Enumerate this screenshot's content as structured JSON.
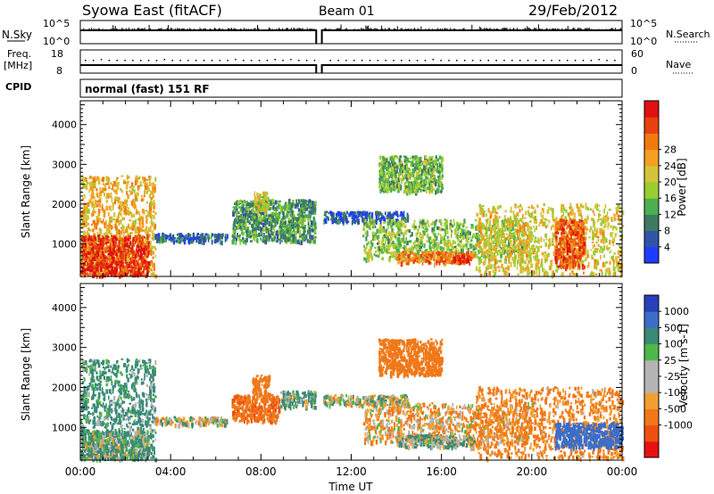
{
  "header": {
    "title": "Syowa East (fitACF)",
    "beam": "Beam 01",
    "date": "29/Feb/2012"
  },
  "aux_panels": {
    "nsky_label": "N.Sky",
    "nsky_ticks": [
      "10^5",
      "10^0"
    ],
    "nsearch_label": "N.Search",
    "nsearch_ticks": [
      "10^5",
      "10^0"
    ],
    "freq_label_line1": "Freq.",
    "freq_label_line2": "[MHz]",
    "freq_ticks": [
      "18",
      "8"
    ],
    "nave_label": "Nave",
    "nave_ticks": [
      "60",
      "0"
    ],
    "cpid_label": "CPID",
    "cpid_text": "normal (fast) 151 RF"
  },
  "x_axis": {
    "label": "Time UT",
    "ticks": [
      "00:00",
      "04:00",
      "08:00",
      "12:00",
      "16:00",
      "20:00",
      "00:00"
    ]
  },
  "colorbars": {
    "power": {
      "label": "Power [dB]",
      "ticks": [
        "4",
        "8",
        "12",
        "16",
        "20",
        "24",
        "28"
      ],
      "colors": [
        "#1e3cff",
        "#2f54a8",
        "#3e7a60",
        "#4caf50",
        "#9acd32",
        "#d4c43a",
        "#f4a020",
        "#f07a10",
        "#e84010",
        "#e01010"
      ]
    },
    "velocity": {
      "label": "Velocity [m s-1]",
      "ticks": [
        "1000",
        "500",
        "100",
        "25",
        "-25",
        "-100",
        "-500",
        "-1000"
      ],
      "colors": [
        "#2840b8",
        "#3c6ec8",
        "#3a8a78",
        "#4cb848",
        "#b4b4b4",
        "#b4b4b4",
        "#f0a030",
        "#f07818",
        "#ee5010",
        "#e81010"
      ]
    }
  },
  "chart_data": [
    {
      "type": "heatmap",
      "name": "power",
      "ylabel": "Slant Range [km]",
      "xlabel": "",
      "ylim": [
        180,
        4600
      ],
      "xlim": [
        0,
        24
      ],
      "y_ticks": [
        "1000",
        "2000",
        "3000",
        "4000"
      ],
      "x_ticks": [
        "00:00",
        "04:00",
        "08:00",
        "12:00",
        "16:00",
        "20:00",
        "00:00"
      ],
      "scale_range": [
        0,
        32
      ],
      "scale_unit": "dB",
      "data_gap_hours": [
        10.45,
        10.7
      ],
      "echo_regions": [
        {
          "t": [
            0.0,
            3.3
          ],
          "r": [
            200,
            2700
          ],
          "value": 20
        },
        {
          "t": [
            0.0,
            3.0
          ],
          "r": [
            200,
            1200
          ],
          "value": 28
        },
        {
          "t": [
            3.3,
            6.5
          ],
          "r": [
            1050,
            1250
          ],
          "value": 6
        },
        {
          "t": [
            6.7,
            10.4
          ],
          "r": [
            1050,
            2100
          ],
          "value": 10
        },
        {
          "t": [
            7.6,
            8.3
          ],
          "r": [
            1800,
            2300
          ],
          "value": 16
        },
        {
          "t": [
            10.7,
            14.5
          ],
          "r": [
            1550,
            1800
          ],
          "value": 5
        },
        {
          "t": [
            12.5,
            20.0
          ],
          "r": [
            600,
            1600
          ],
          "value": 14
        },
        {
          "t": [
            14.0,
            17.4
          ],
          "r": [
            500,
            800
          ],
          "value": 24
        },
        {
          "t": [
            16.5,
            17.2
          ],
          "r": [
            550,
            700
          ],
          "value": 30
        },
        {
          "t": [
            13.2,
            16.0
          ],
          "r": [
            2300,
            3200
          ],
          "value": 12
        },
        {
          "t": [
            17.5,
            24.0
          ],
          "r": [
            200,
            2000
          ],
          "value": 18
        },
        {
          "t": [
            21.0,
            22.3
          ],
          "r": [
            400,
            1600
          ],
          "value": 26
        }
      ]
    },
    {
      "type": "heatmap",
      "name": "velocity",
      "ylabel": "Slant Range [km]",
      "xlabel": "Time UT",
      "ylim": [
        180,
        4600
      ],
      "xlim": [
        0,
        24
      ],
      "y_ticks": [
        "1000",
        "2000",
        "3000",
        "4000"
      ],
      "x_ticks": [
        "00:00",
        "04:00",
        "08:00",
        "12:00",
        "16:00",
        "20:00",
        "00:00"
      ],
      "scale_range": [
        -1000,
        1000
      ],
      "scale_unit": "m s-1",
      "data_gap_hours": [
        10.45,
        10.7
      ],
      "echo_regions": [
        {
          "t": [
            0.0,
            3.3
          ],
          "r": [
            200,
            2700
          ],
          "value": 120
        },
        {
          "t": [
            0.0,
            3.0
          ],
          "r": [
            200,
            900
          ],
          "value": 60
        },
        {
          "t": [
            3.3,
            6.5
          ],
          "r": [
            1050,
            1250
          ],
          "value": -10
        },
        {
          "t": [
            6.7,
            8.8
          ],
          "r": [
            1150,
            1800
          ],
          "value": -450
        },
        {
          "t": [
            7.6,
            8.4
          ],
          "r": [
            1800,
            2300
          ],
          "value": -300
        },
        {
          "t": [
            8.8,
            10.4
          ],
          "r": [
            1500,
            1900
          ],
          "value": 80
        },
        {
          "t": [
            10.7,
            14.5
          ],
          "r": [
            1550,
            1800
          ],
          "value": 0
        },
        {
          "t": [
            12.5,
            20.0
          ],
          "r": [
            600,
            1600
          ],
          "value": -80
        },
        {
          "t": [
            14.0,
            17.4
          ],
          "r": [
            500,
            800
          ],
          "value": 40
        },
        {
          "t": [
            13.2,
            16.0
          ],
          "r": [
            2300,
            3200
          ],
          "value": -250
        },
        {
          "t": [
            17.5,
            24.0
          ],
          "r": [
            200,
            2000
          ],
          "value": -150
        },
        {
          "t": [
            21.0,
            24.0
          ],
          "r": [
            500,
            1100
          ],
          "value": 500
        }
      ]
    }
  ]
}
